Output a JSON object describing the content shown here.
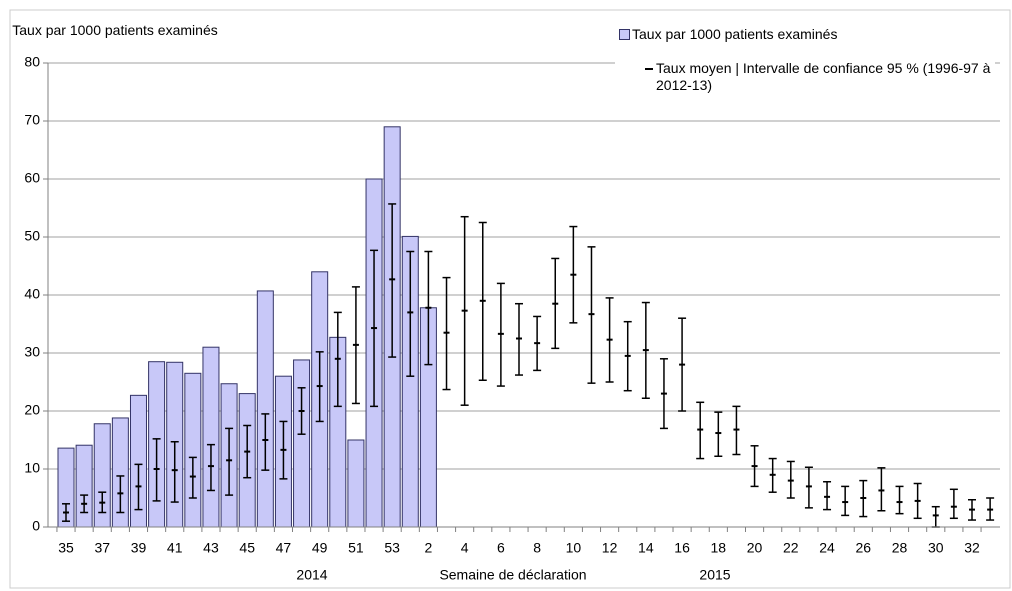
{
  "chart_data": {
    "type": "bar_errorbar",
    "ylabel": "Taux par 1000  patients examinés",
    "xlabel": "Semaine de déclaration",
    "year_labels": [
      "2014",
      "2015"
    ],
    "categories": [
      "35",
      null,
      "37",
      null,
      "39",
      null,
      "41",
      null,
      "43",
      null,
      "45",
      null,
      "47",
      null,
      "49",
      null,
      "51",
      null,
      "53",
      null,
      "2",
      null,
      "4",
      null,
      "6",
      null,
      "8",
      null,
      "10",
      null,
      "12",
      null,
      "14",
      null,
      "16",
      null,
      "18",
      null,
      "20",
      null,
      "22",
      null,
      "24",
      null,
      "26",
      null,
      "28",
      null,
      "30",
      null,
      "32",
      null
    ],
    "ylim": [
      0,
      80
    ],
    "yticks": [
      0,
      10,
      20,
      30,
      40,
      50,
      60,
      70,
      80
    ],
    "grid": true,
    "legend": "top-right",
    "series": [
      {
        "name": "Taux par 1000 patients examinés",
        "color": "#c8c8f8",
        "values": [
          13.6,
          14.1,
          17.8,
          18.8,
          22.7,
          28.5,
          28.4,
          26.5,
          31,
          24.7,
          23,
          40.7,
          26,
          28.8,
          44,
          32.7,
          15,
          60,
          69,
          50.1,
          37.8,
          null,
          null,
          null,
          null,
          null,
          null,
          null,
          null,
          null,
          null,
          null,
          null,
          null,
          null,
          null,
          null,
          null,
          null,
          null,
          null,
          null,
          null,
          null,
          null,
          null,
          null,
          null,
          null,
          null,
          null,
          null
        ]
      },
      {
        "name": "Taux moyen | Intervalle de confiance 95 % (1996-97 à 2012-13)",
        "color": "#000000",
        "values": [
          2.5,
          4,
          4.2,
          5.8,
          7,
          10,
          9.8,
          8.7,
          10.5,
          11.5,
          13,
          15,
          13.3,
          20,
          24.3,
          29,
          31.4,
          34.3,
          42.7,
          37,
          37.8,
          33.5,
          37.3,
          39,
          33.3,
          32.5,
          31.7,
          38.5,
          43.5,
          36.7,
          32.3,
          29.5,
          30.5,
          23,
          28,
          16.8,
          16.2,
          16.8,
          10.5,
          9,
          8,
          7,
          5.2,
          4.3,
          5,
          6.3,
          4.3,
          4.5,
          2,
          3.5,
          3,
          3
        ],
        "error_low": [
          1,
          2.5,
          2.5,
          2.5,
          3,
          4.5,
          4.3,
          5,
          6.3,
          5.5,
          8.5,
          9.8,
          8.3,
          16,
          18.2,
          20.8,
          21.3,
          20.8,
          29.3,
          26,
          28,
          23.7,
          21,
          25.3,
          24.3,
          26.2,
          27,
          30.8,
          35.2,
          24.8,
          25,
          23.5,
          22.2,
          17,
          20,
          11.8,
          12.2,
          12.5,
          7,
          6,
          5,
          3.3,
          3,
          2,
          1.8,
          2.8,
          2.3,
          1.5,
          0,
          1.5,
          1.2,
          1.2
        ],
        "error_high": [
          4,
          5.5,
          6,
          8.8,
          10.8,
          15.2,
          14.7,
          12,
          14.2,
          17,
          17.5,
          19.5,
          18.2,
          24,
          30.2,
          37,
          41.4,
          47.7,
          55.7,
          47.5,
          47.5,
          43,
          53.5,
          52.5,
          42,
          38.5,
          36.3,
          46.3,
          51.8,
          48.3,
          39.5,
          35.4,
          38.7,
          29,
          36,
          21.5,
          19.8,
          20.8,
          14,
          11.8,
          11.3,
          10.3,
          7.8,
          7,
          8,
          10.2,
          7,
          7.5,
          3.5,
          6.5,
          4.7,
          5
        ]
      }
    ]
  }
}
